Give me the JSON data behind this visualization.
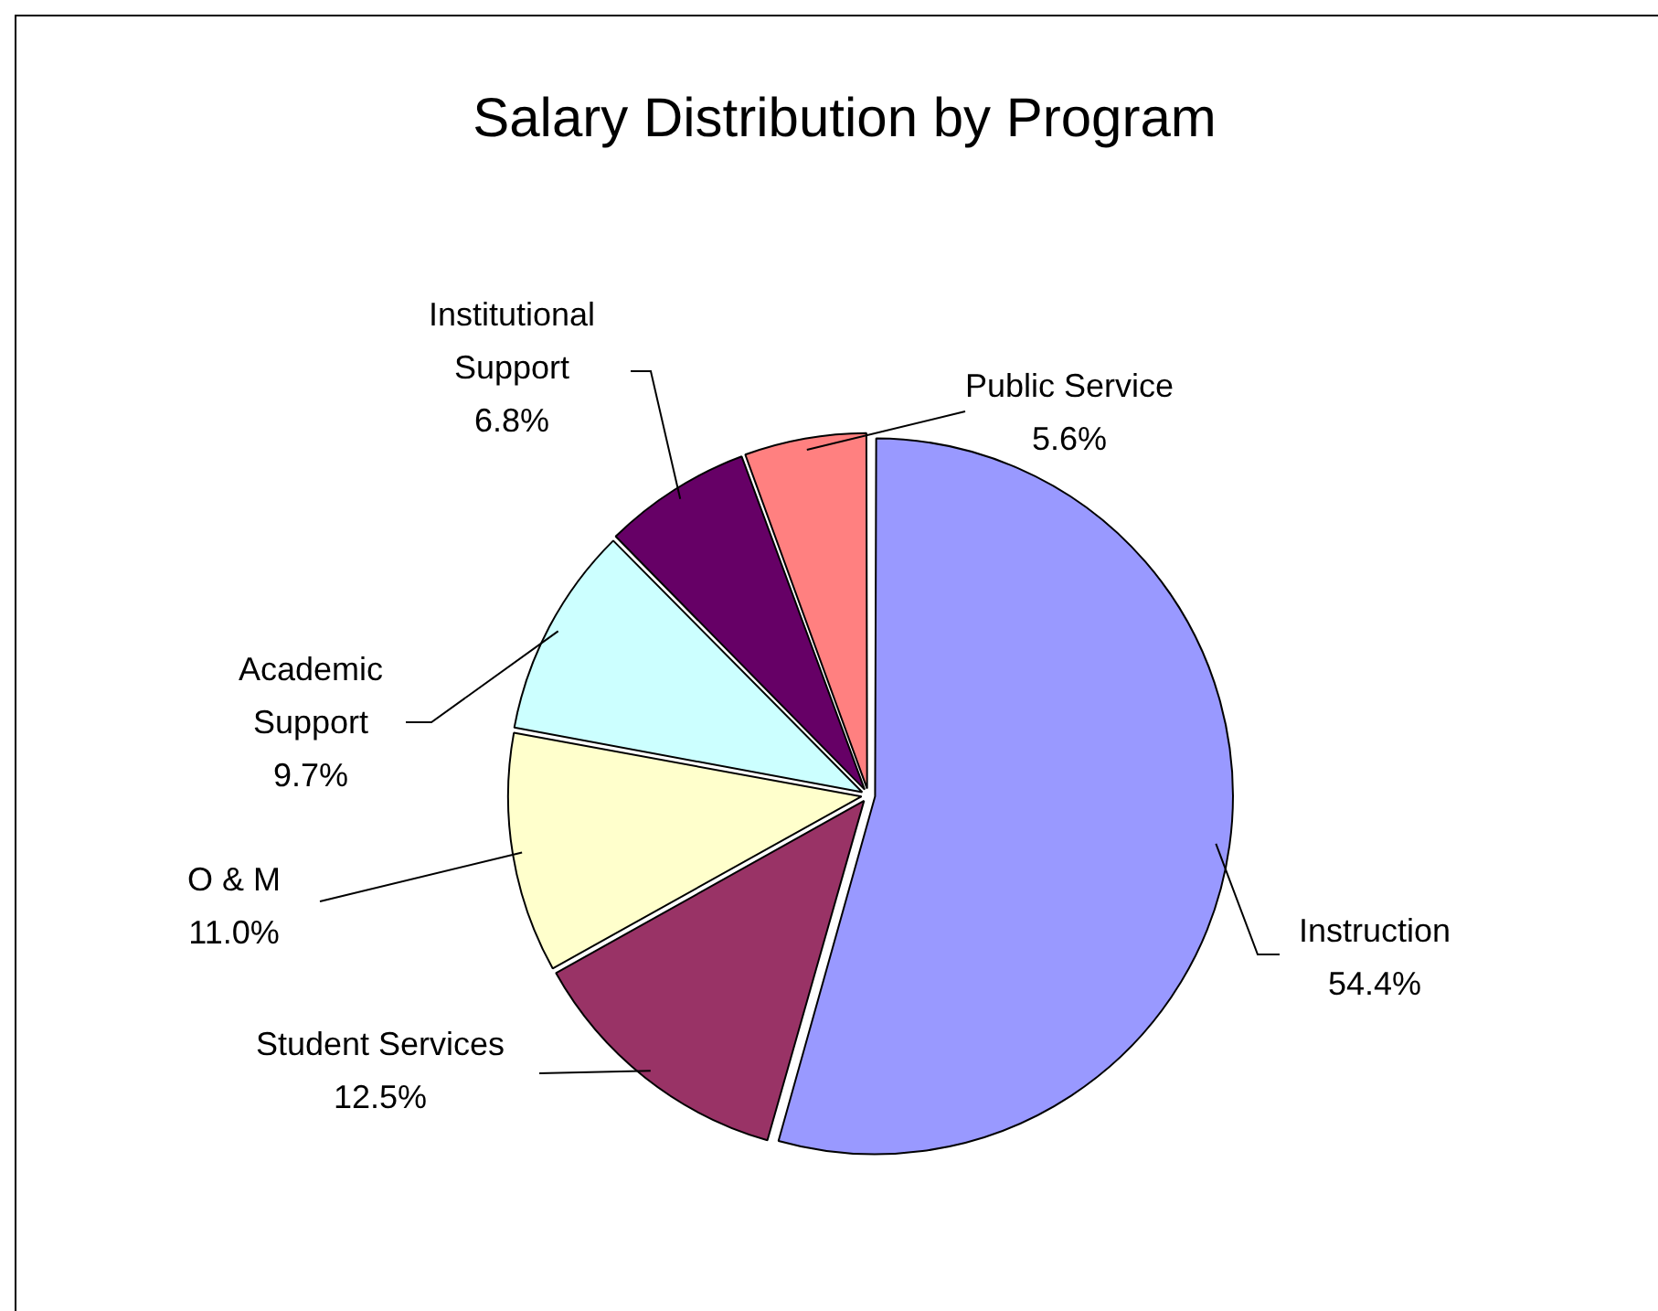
{
  "chart_data": {
    "type": "pie",
    "title": "Salary Distribution by Program",
    "categories": [
      "Instruction",
      "Student Services",
      "O & M",
      "Academic Support",
      "Institutional Support",
      "Public Service"
    ],
    "values": [
      54.4,
      12.5,
      11.0,
      9.7,
      6.8,
      5.6
    ],
    "value_labels": [
      "54.4%",
      "12.5%",
      "11.0%",
      "9.7%",
      "6.8%",
      "5.6%"
    ],
    "colors": [
      "#9999ff",
      "#993366",
      "#ffffcc",
      "#ccffff",
      "#660066",
      "#ff8080"
    ],
    "legend": false
  }
}
